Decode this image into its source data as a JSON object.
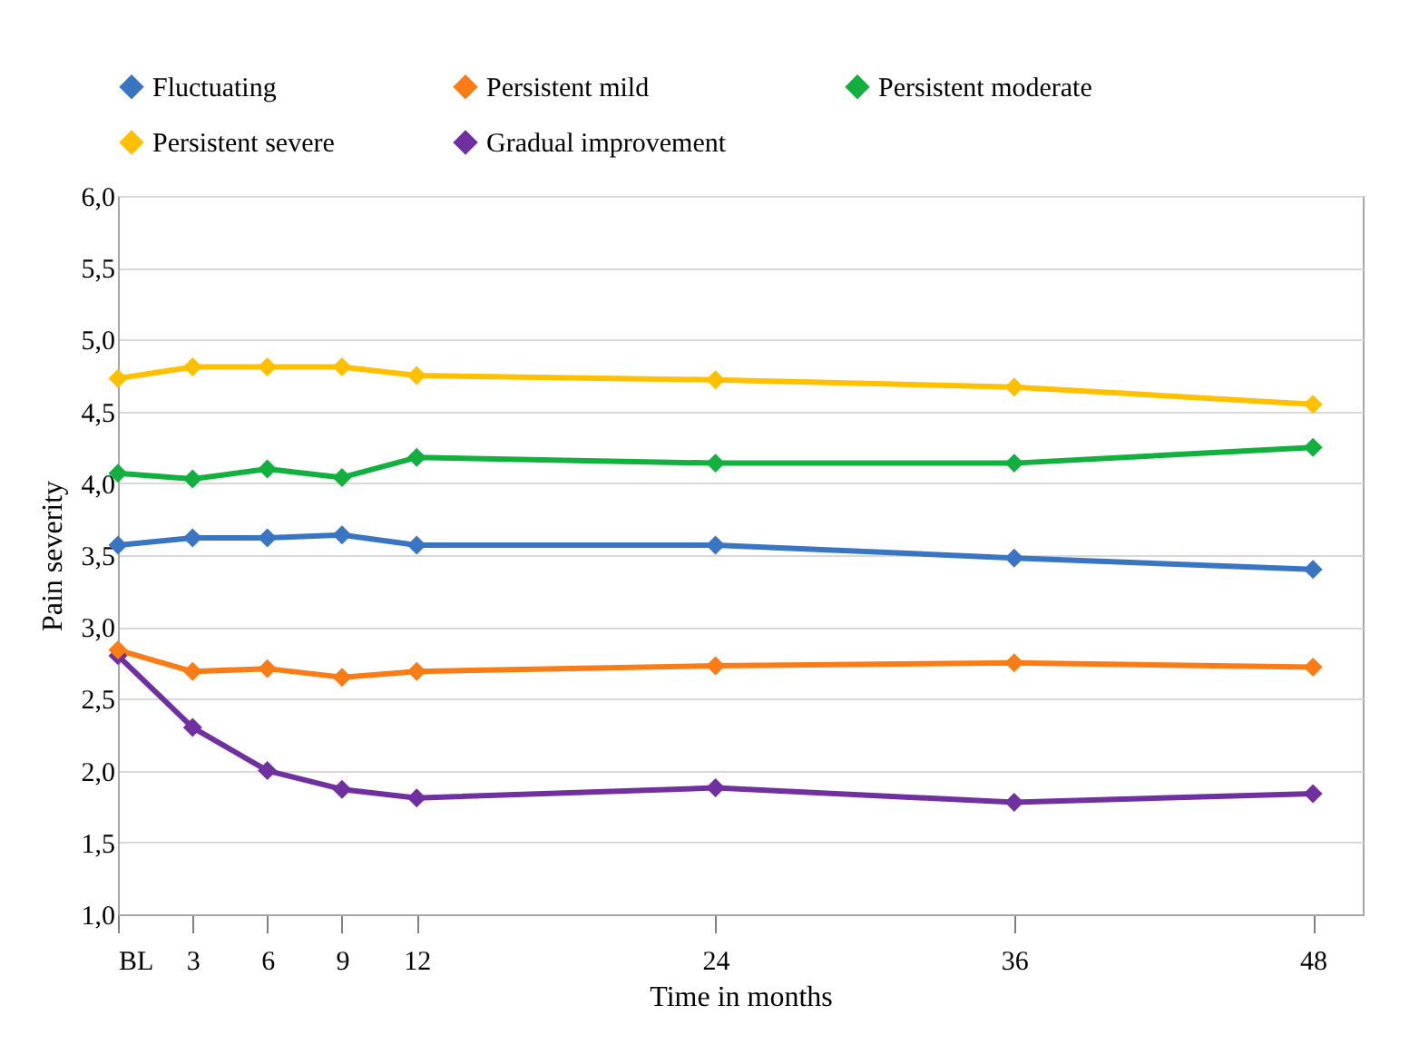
{
  "chart_data": {
    "type": "line",
    "xlabel": "Time in months",
    "ylabel": "Pain severity",
    "x": [
      0,
      3,
      6,
      9,
      12,
      24,
      36,
      48
    ],
    "xlim": [
      0,
      50
    ],
    "xticks": [
      {
        "value": 0,
        "label": "BL"
      },
      3,
      6,
      9,
      12,
      24,
      36,
      48
    ],
    "ylim": [
      1,
      6
    ],
    "yticks": [
      {
        "value": 1,
        "label": "1,0"
      },
      {
        "value": 1.5,
        "label": "1,5"
      },
      {
        "value": 2,
        "label": "2,0"
      },
      {
        "value": 2.5,
        "label": "2,5"
      },
      {
        "value": 3,
        "label": "3,0"
      },
      {
        "value": 3.5,
        "label": "3,5"
      },
      {
        "value": 4,
        "label": "4,0"
      },
      {
        "value": 4.5,
        "label": "4,5"
      },
      {
        "value": 5,
        "label": "5,0"
      },
      {
        "value": 5.5,
        "label": "5,5"
      },
      {
        "value": 6,
        "label": "6,0"
      }
    ],
    "grid": "y",
    "legend": "top",
    "marker": "diamond",
    "line_style": "solid",
    "series": [
      {
        "name": "Fluctuating",
        "color": "#3a75c4",
        "values": [
          3.57,
          3.62,
          3.62,
          3.64,
          3.57,
          3.57,
          3.48,
          3.4
        ]
      },
      {
        "name": "Persistent mild",
        "color": "#f97c17",
        "values": [
          2.84,
          2.69,
          2.71,
          2.65,
          2.69,
          2.73,
          2.75,
          2.72
        ]
      },
      {
        "name": "Persistent moderate",
        "color": "#13b040",
        "values": [
          4.07,
          4.03,
          4.1,
          4.04,
          4.18,
          4.14,
          4.14,
          4.25
        ]
      },
      {
        "name": "Persistent severe",
        "color": "#ffc000",
        "values": [
          4.73,
          4.81,
          4.81,
          4.81,
          4.75,
          4.72,
          4.67,
          4.55
        ]
      },
      {
        "name": "Gradual improvement",
        "color": "#7030a0",
        "values": [
          2.8,
          2.3,
          2.0,
          1.87,
          1.81,
          1.88,
          1.78,
          1.84
        ]
      }
    ]
  }
}
